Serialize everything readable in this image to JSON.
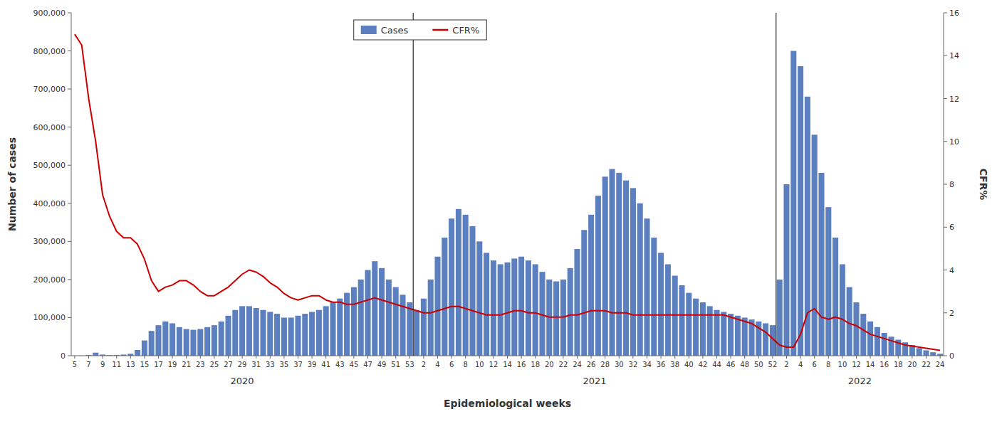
{
  "chart_data": {
    "type": "bar",
    "xlabel": "Epidemiological weeks",
    "ylabel": "Number of cases",
    "y2label": "CFR%",
    "grid": false,
    "legend": "top",
    "categories": [
      "5",
      null,
      "7",
      null,
      "9",
      null,
      "11",
      null,
      "13",
      null,
      "15",
      null,
      "17",
      null,
      "19",
      null,
      "21",
      null,
      "23",
      null,
      "25",
      null,
      "27",
      null,
      "29",
      null,
      "31",
      null,
      "33",
      null,
      "35",
      null,
      "37",
      null,
      "39",
      null,
      "41",
      null,
      "43",
      null,
      "45",
      null,
      "47",
      null,
      "49",
      null,
      "51",
      null,
      "53",
      null,
      "2",
      null,
      "4",
      null,
      "6",
      null,
      "8",
      null,
      "10",
      null,
      "12",
      null,
      "14",
      null,
      "16",
      null,
      "18",
      null,
      "20",
      null,
      "22",
      null,
      "24",
      null,
      "26",
      null,
      "28",
      null,
      "30",
      null,
      "32",
      null,
      "34",
      null,
      "36",
      null,
      "38",
      null,
      "40",
      null,
      "42",
      null,
      "44",
      null,
      "46",
      null,
      "48",
      null,
      "50",
      null,
      "52",
      null,
      "2",
      null,
      "4",
      null,
      "6",
      null,
      "8",
      null,
      "10",
      null,
      "12",
      null,
      "14",
      null,
      "16",
      null,
      "18",
      null,
      "20",
      null,
      "22",
      null,
      "24"
    ],
    "annotations": [
      {
        "text": "2020",
        "first": 0,
        "last": 48
      },
      {
        "text": "2021",
        "first": 49,
        "last": 100
      },
      {
        "text": "2022",
        "first": 101,
        "last": 124
      }
    ],
    "ylim": [
      0,
      900000
    ],
    "yticks": [
      0,
      {
        "value": 100000,
        "label": "100,000"
      },
      {
        "value": 200000,
        "label": "200,000"
      },
      {
        "value": 300000,
        "label": "300,000"
      },
      {
        "value": 400000,
        "label": "400,000"
      },
      {
        "value": 500000,
        "label": "500,000"
      },
      {
        "value": 600000,
        "label": "600,000"
      },
      {
        "value": 700000,
        "label": "700,000"
      },
      {
        "value": 800000,
        "label": "800,000"
      },
      {
        "value": 900000,
        "label": "900,000"
      }
    ],
    "y2lim": [
      0,
      16
    ],
    "y2ticks": [
      0,
      2,
      4,
      6,
      8,
      10,
      12,
      14,
      16
    ],
    "series": [
      {
        "name": "Cases",
        "type": "bar",
        "color": "#5B7FBF",
        "values": [
          200,
          400,
          2000,
          8000,
          3000,
          1500,
          2000,
          3000,
          5000,
          15000,
          40000,
          65000,
          80000,
          90000,
          85000,
          75000,
          70000,
          68000,
          70000,
          75000,
          80000,
          90000,
          105000,
          120000,
          130000,
          130000,
          125000,
          120000,
          115000,
          110000,
          100000,
          100000,
          105000,
          110000,
          115000,
          120000,
          130000,
          140000,
          150000,
          165000,
          180000,
          200000,
          225000,
          248000,
          230000,
          200000,
          180000,
          160000,
          140000,
          120000,
          150000,
          200000,
          260000,
          310000,
          360000,
          385000,
          370000,
          340000,
          300000,
          270000,
          250000,
          240000,
          245000,
          255000,
          260000,
          250000,
          240000,
          220000,
          200000,
          195000,
          200000,
          230000,
          280000,
          330000,
          370000,
          420000,
          470000,
          490000,
          480000,
          460000,
          440000,
          400000,
          360000,
          310000,
          270000,
          240000,
          210000,
          185000,
          165000,
          150000,
          140000,
          130000,
          120000,
          115000,
          110000,
          105000,
          100000,
          95000,
          90000,
          85000,
          80000,
          200000,
          450000,
          800000,
          760000,
          680000,
          580000,
          480000,
          390000,
          310000,
          240000,
          180000,
          140000,
          110000,
          90000,
          75000,
          60000,
          50000,
          42000,
          35000,
          28000,
          20000,
          14000,
          9000,
          5000
        ]
      },
      {
        "name": "CFR%",
        "type": "line",
        "axis": "y2",
        "color": "#CC0000",
        "values": [
          15.0,
          14.5,
          12.0,
          10.0,
          7.5,
          6.5,
          5.8,
          5.5,
          5.5,
          5.2,
          4.5,
          3.5,
          3.0,
          3.2,
          3.3,
          3.5,
          3.5,
          3.3,
          3.0,
          2.8,
          2.8,
          3.0,
          3.2,
          3.5,
          3.8,
          4.0,
          3.9,
          3.7,
          3.4,
          3.2,
          2.9,
          2.7,
          2.6,
          2.7,
          2.8,
          2.8,
          2.6,
          2.5,
          2.5,
          2.4,
          2.4,
          2.5,
          2.6,
          2.7,
          2.6,
          2.5,
          2.4,
          2.3,
          2.2,
          2.1,
          2.0,
          2.0,
          2.1,
          2.2,
          2.3,
          2.3,
          2.2,
          2.1,
          2.0,
          1.9,
          1.9,
          1.9,
          2.0,
          2.1,
          2.1,
          2.0,
          2.0,
          1.9,
          1.8,
          1.8,
          1.8,
          1.9,
          1.9,
          2.0,
          2.1,
          2.1,
          2.1,
          2.0,
          2.0,
          2.0,
          1.9,
          1.9,
          1.9,
          1.9,
          1.9,
          1.9,
          1.9,
          1.9,
          1.9,
          1.9,
          1.9,
          1.9,
          1.9,
          1.9,
          1.8,
          1.7,
          1.6,
          1.5,
          1.3,
          1.1,
          0.8,
          0.5,
          0.4,
          0.4,
          1.0,
          2.0,
          2.2,
          1.8,
          1.7,
          1.8,
          1.7,
          1.5,
          1.4,
          1.2,
          1.0,
          0.9,
          0.8,
          0.7,
          0.6,
          0.5,
          0.45,
          0.4,
          0.35,
          0.3,
          0.25
        ]
      }
    ]
  }
}
